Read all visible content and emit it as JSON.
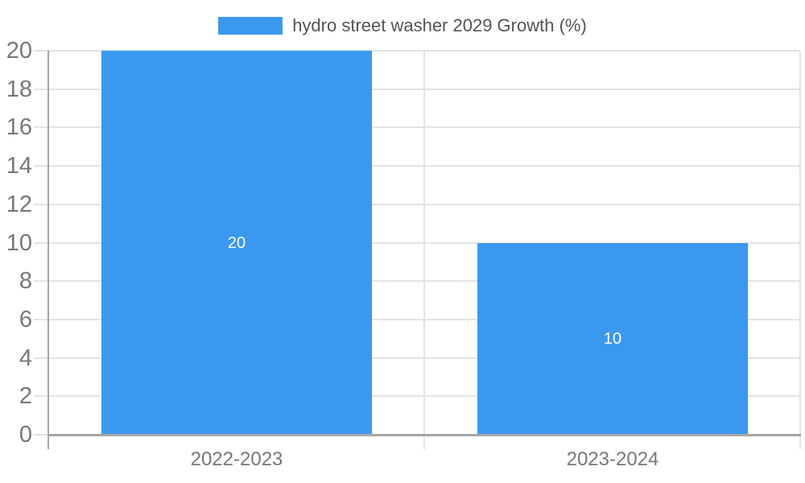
{
  "legend": {
    "label": "hydro street washer 2029 Growth (%)"
  },
  "colors": {
    "bar": "#3a99ee",
    "axis": "#a5a5a5",
    "grid": "#e3e3e3",
    "y_tick_label": "#787878",
    "x_tick_label": "#787878",
    "legend_text": "#545454",
    "value_label": "#ffffff",
    "background": "#ffffff"
  },
  "chart_data": {
    "type": "bar",
    "title": "hydro street washer 2029 Growth (%)",
    "categories": [
      "2022-2023",
      "2023-2024"
    ],
    "values": [
      20,
      10
    ],
    "bar_labels": [
      "20",
      "10"
    ],
    "bar_label_position": "center",
    "xlabel": "",
    "ylabel": "",
    "ylim": [
      0,
      20
    ],
    "yticks": [
      0,
      2,
      4,
      6,
      8,
      10,
      12,
      14,
      16,
      18,
      20
    ],
    "grid": true,
    "legend_entries": [
      "hydro street washer 2029 Growth (%)"
    ],
    "legend_position": "top-center"
  }
}
